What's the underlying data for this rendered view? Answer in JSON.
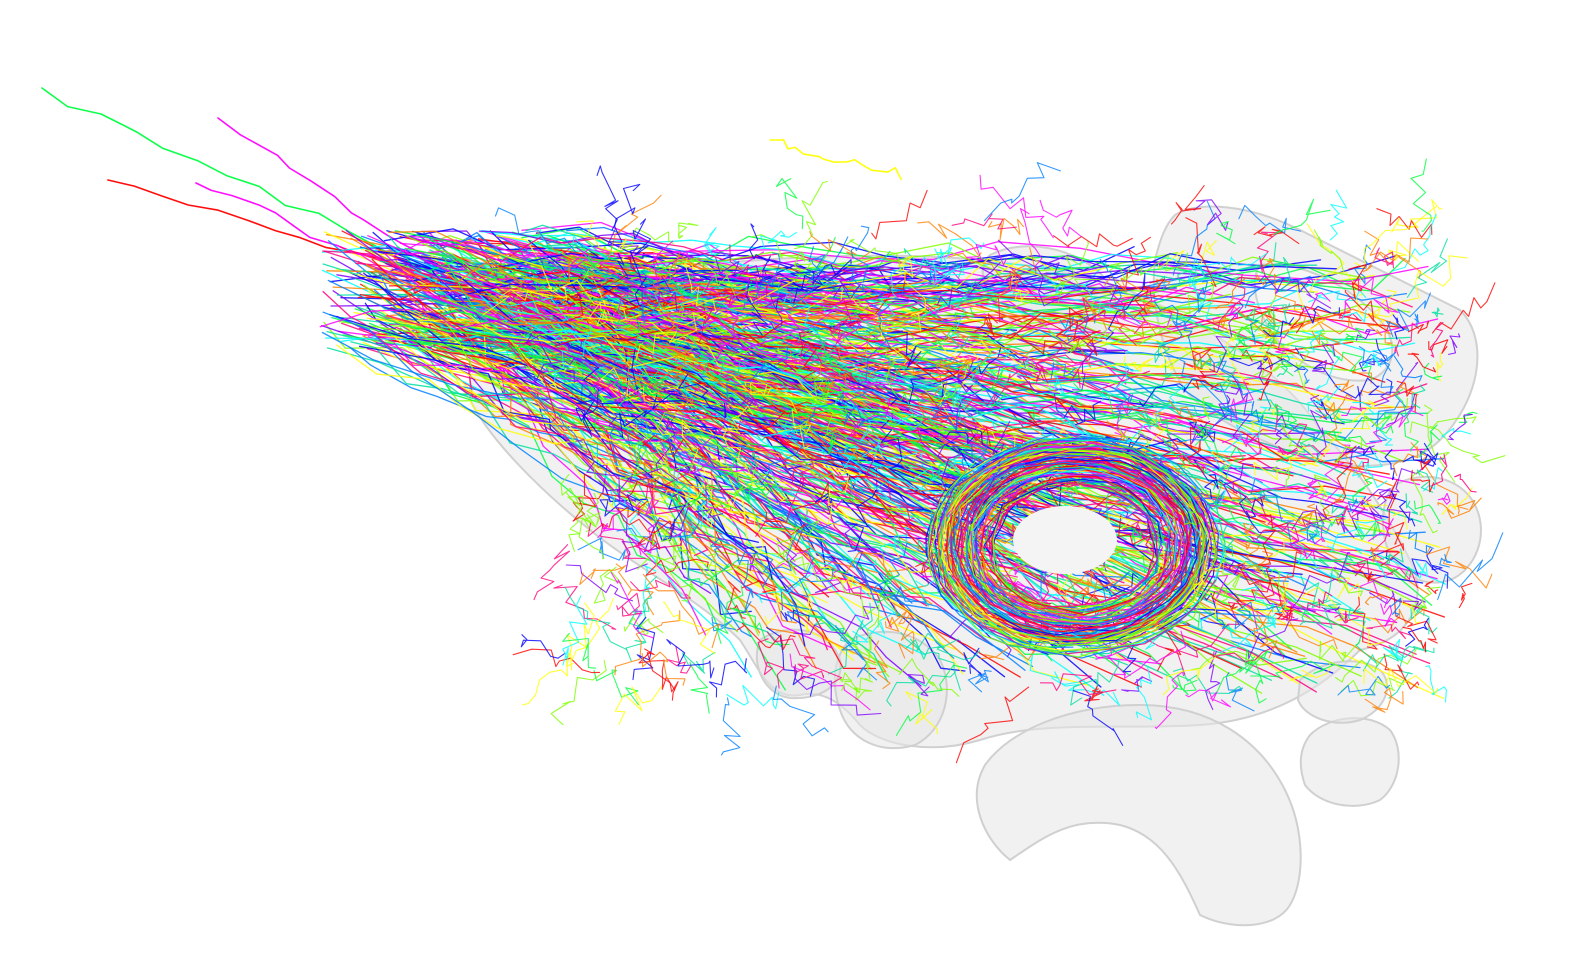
{
  "scene": {
    "background": "#ffffff",
    "mesh_fill": "#e6e6e6",
    "mesh_stroke": "#d2d2d2",
    "neuron_palette": [
      "#ff0000",
      "#ff8000",
      "#ffff00",
      "#80ff00",
      "#00ff40",
      "#00ffff",
      "#0080ff",
      "#0000ff",
      "#8000ff",
      "#ff00ff",
      "#ff0080",
      "#00e0a0"
    ]
  }
}
